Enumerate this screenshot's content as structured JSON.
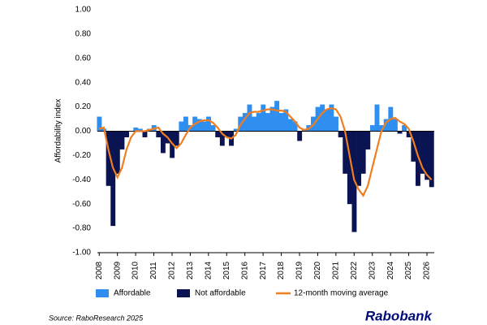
{
  "chart_data": {
    "type": "bar-line",
    "y_label": "Affordability index",
    "source": "Source: RaboResearch 2025",
    "brand": "Rabobank",
    "xlim": [
      2007.9,
      2026.4
    ],
    "xticks": [
      2008,
      2009,
      2010,
      2011,
      2012,
      2013,
      2014,
      2015,
      2016,
      2017,
      2018,
      2019,
      2020,
      2021,
      2022,
      2023,
      2024,
      2025,
      2026
    ],
    "ylim": [
      -1,
      1
    ],
    "yticks": [
      {
        "value": -1,
        "label": "-1.00"
      },
      {
        "value": -0.8,
        "label": "-0.80"
      },
      {
        "value": -0.6,
        "label": "-0.60"
      },
      {
        "value": -0.4,
        "label": "-0.40"
      },
      {
        "value": -0.2,
        "label": "-0.20"
      },
      {
        "value": 0,
        "label": "0.00"
      },
      {
        "value": 0.2,
        "label": "0.20"
      },
      {
        "value": 0.4,
        "label": "0.40"
      },
      {
        "value": 0.6,
        "label": "0.60"
      },
      {
        "value": 0.8,
        "label": "0.80"
      },
      {
        "value": 1,
        "label": "1.00"
      }
    ],
    "x": [
      2008,
      2008.25,
      2008.5,
      2008.75,
      2009,
      2009.25,
      2009.5,
      2009.75,
      2010,
      2010.25,
      2010.5,
      2010.75,
      2011,
      2011.25,
      2011.5,
      2011.75,
      2012,
      2012.25,
      2012.5,
      2012.75,
      2013,
      2013.25,
      2013.5,
      2013.75,
      2014,
      2014.25,
      2014.5,
      2014.75,
      2015,
      2015.25,
      2015.5,
      2015.75,
      2016,
      2016.25,
      2016.5,
      2016.75,
      2017,
      2017.25,
      2017.5,
      2017.75,
      2018,
      2018.25,
      2018.5,
      2018.75,
      2019,
      2019.25,
      2019.5,
      2019.75,
      2020,
      2020.25,
      2020.5,
      2020.75,
      2021,
      2021.25,
      2021.5,
      2021.75,
      2022,
      2022.25,
      2022.5,
      2022.75,
      2023,
      2023.25,
      2023.5,
      2023.75,
      2024,
      2024.25,
      2024.5,
      2024.75,
      2025,
      2025.25,
      2025.5,
      2025.75,
      2026,
      2026.25
    ],
    "series": [
      {
        "name": "Affordable",
        "color": "#2f8ff0",
        "type": "bar",
        "values": [
          0.12,
          0.02,
          null,
          null,
          null,
          null,
          null,
          0.0,
          0.03,
          0.02,
          null,
          0.02,
          0.05,
          null,
          null,
          null,
          null,
          null,
          0.08,
          0.12,
          0.05,
          0.12,
          0.1,
          0.08,
          0.12,
          0.05,
          null,
          null,
          null,
          null,
          0.02,
          0.12,
          0.15,
          0.22,
          0.12,
          0.15,
          0.22,
          0.15,
          0.2,
          0.25,
          0.15,
          0.18,
          0.1,
          0.08,
          null,
          0.02,
          0.05,
          0.12,
          0.2,
          0.22,
          0.18,
          0.22,
          0.12,
          null,
          null,
          null,
          null,
          null,
          null,
          null,
          0.05,
          0.22,
          0.05,
          0.1,
          0.2,
          0.1,
          null,
          0.05,
          null,
          null,
          null,
          null,
          null,
          null
        ]
      },
      {
        "name": "Not affordable",
        "color": "#0b1452",
        "type": "bar",
        "values": [
          null,
          null,
          -0.45,
          -0.78,
          -0.35,
          -0.15,
          -0.05,
          null,
          null,
          null,
          -0.05,
          null,
          null,
          -0.05,
          -0.18,
          -0.1,
          -0.22,
          -0.12,
          null,
          null,
          null,
          null,
          null,
          null,
          null,
          null,
          -0.05,
          -0.12,
          -0.05,
          -0.12,
          null,
          null,
          null,
          null,
          null,
          null,
          null,
          null,
          null,
          null,
          null,
          null,
          null,
          null,
          -0.08,
          null,
          null,
          null,
          null,
          null,
          null,
          null,
          null,
          -0.05,
          -0.35,
          -0.6,
          -0.83,
          -0.45,
          -0.35,
          -0.15,
          null,
          null,
          null,
          null,
          null,
          null,
          -0.02,
          null,
          -0.05,
          -0.25,
          -0.45,
          -0.35,
          -0.4,
          -0.46
        ]
      },
      {
        "name": "12-month moving average",
        "color": "#f07d1e",
        "type": "line",
        "values": [
          0.02,
          0.03,
          -0.15,
          -0.3,
          -0.38,
          -0.3,
          -0.15,
          -0.05,
          0.0,
          0.0,
          0.0,
          0.01,
          0.02,
          0.03,
          -0.02,
          -0.05,
          -0.1,
          -0.14,
          -0.1,
          -0.03,
          0.03,
          0.06,
          0.08,
          0.09,
          0.09,
          0.07,
          0.03,
          -0.02,
          -0.05,
          -0.06,
          -0.03,
          0.05,
          0.1,
          0.15,
          0.16,
          0.16,
          0.17,
          0.18,
          0.18,
          0.17,
          0.17,
          0.16,
          0.12,
          0.08,
          0.03,
          0.01,
          0.02,
          0.05,
          0.1,
          0.15,
          0.18,
          0.19,
          0.18,
          0.12,
          0.0,
          -0.2,
          -0.4,
          -0.48,
          -0.53,
          -0.45,
          -0.3,
          -0.15,
          0.0,
          0.07,
          0.1,
          0.11,
          0.08,
          0.06,
          0.02,
          -0.08,
          -0.2,
          -0.3,
          -0.36,
          -0.4
        ]
      }
    ]
  }
}
